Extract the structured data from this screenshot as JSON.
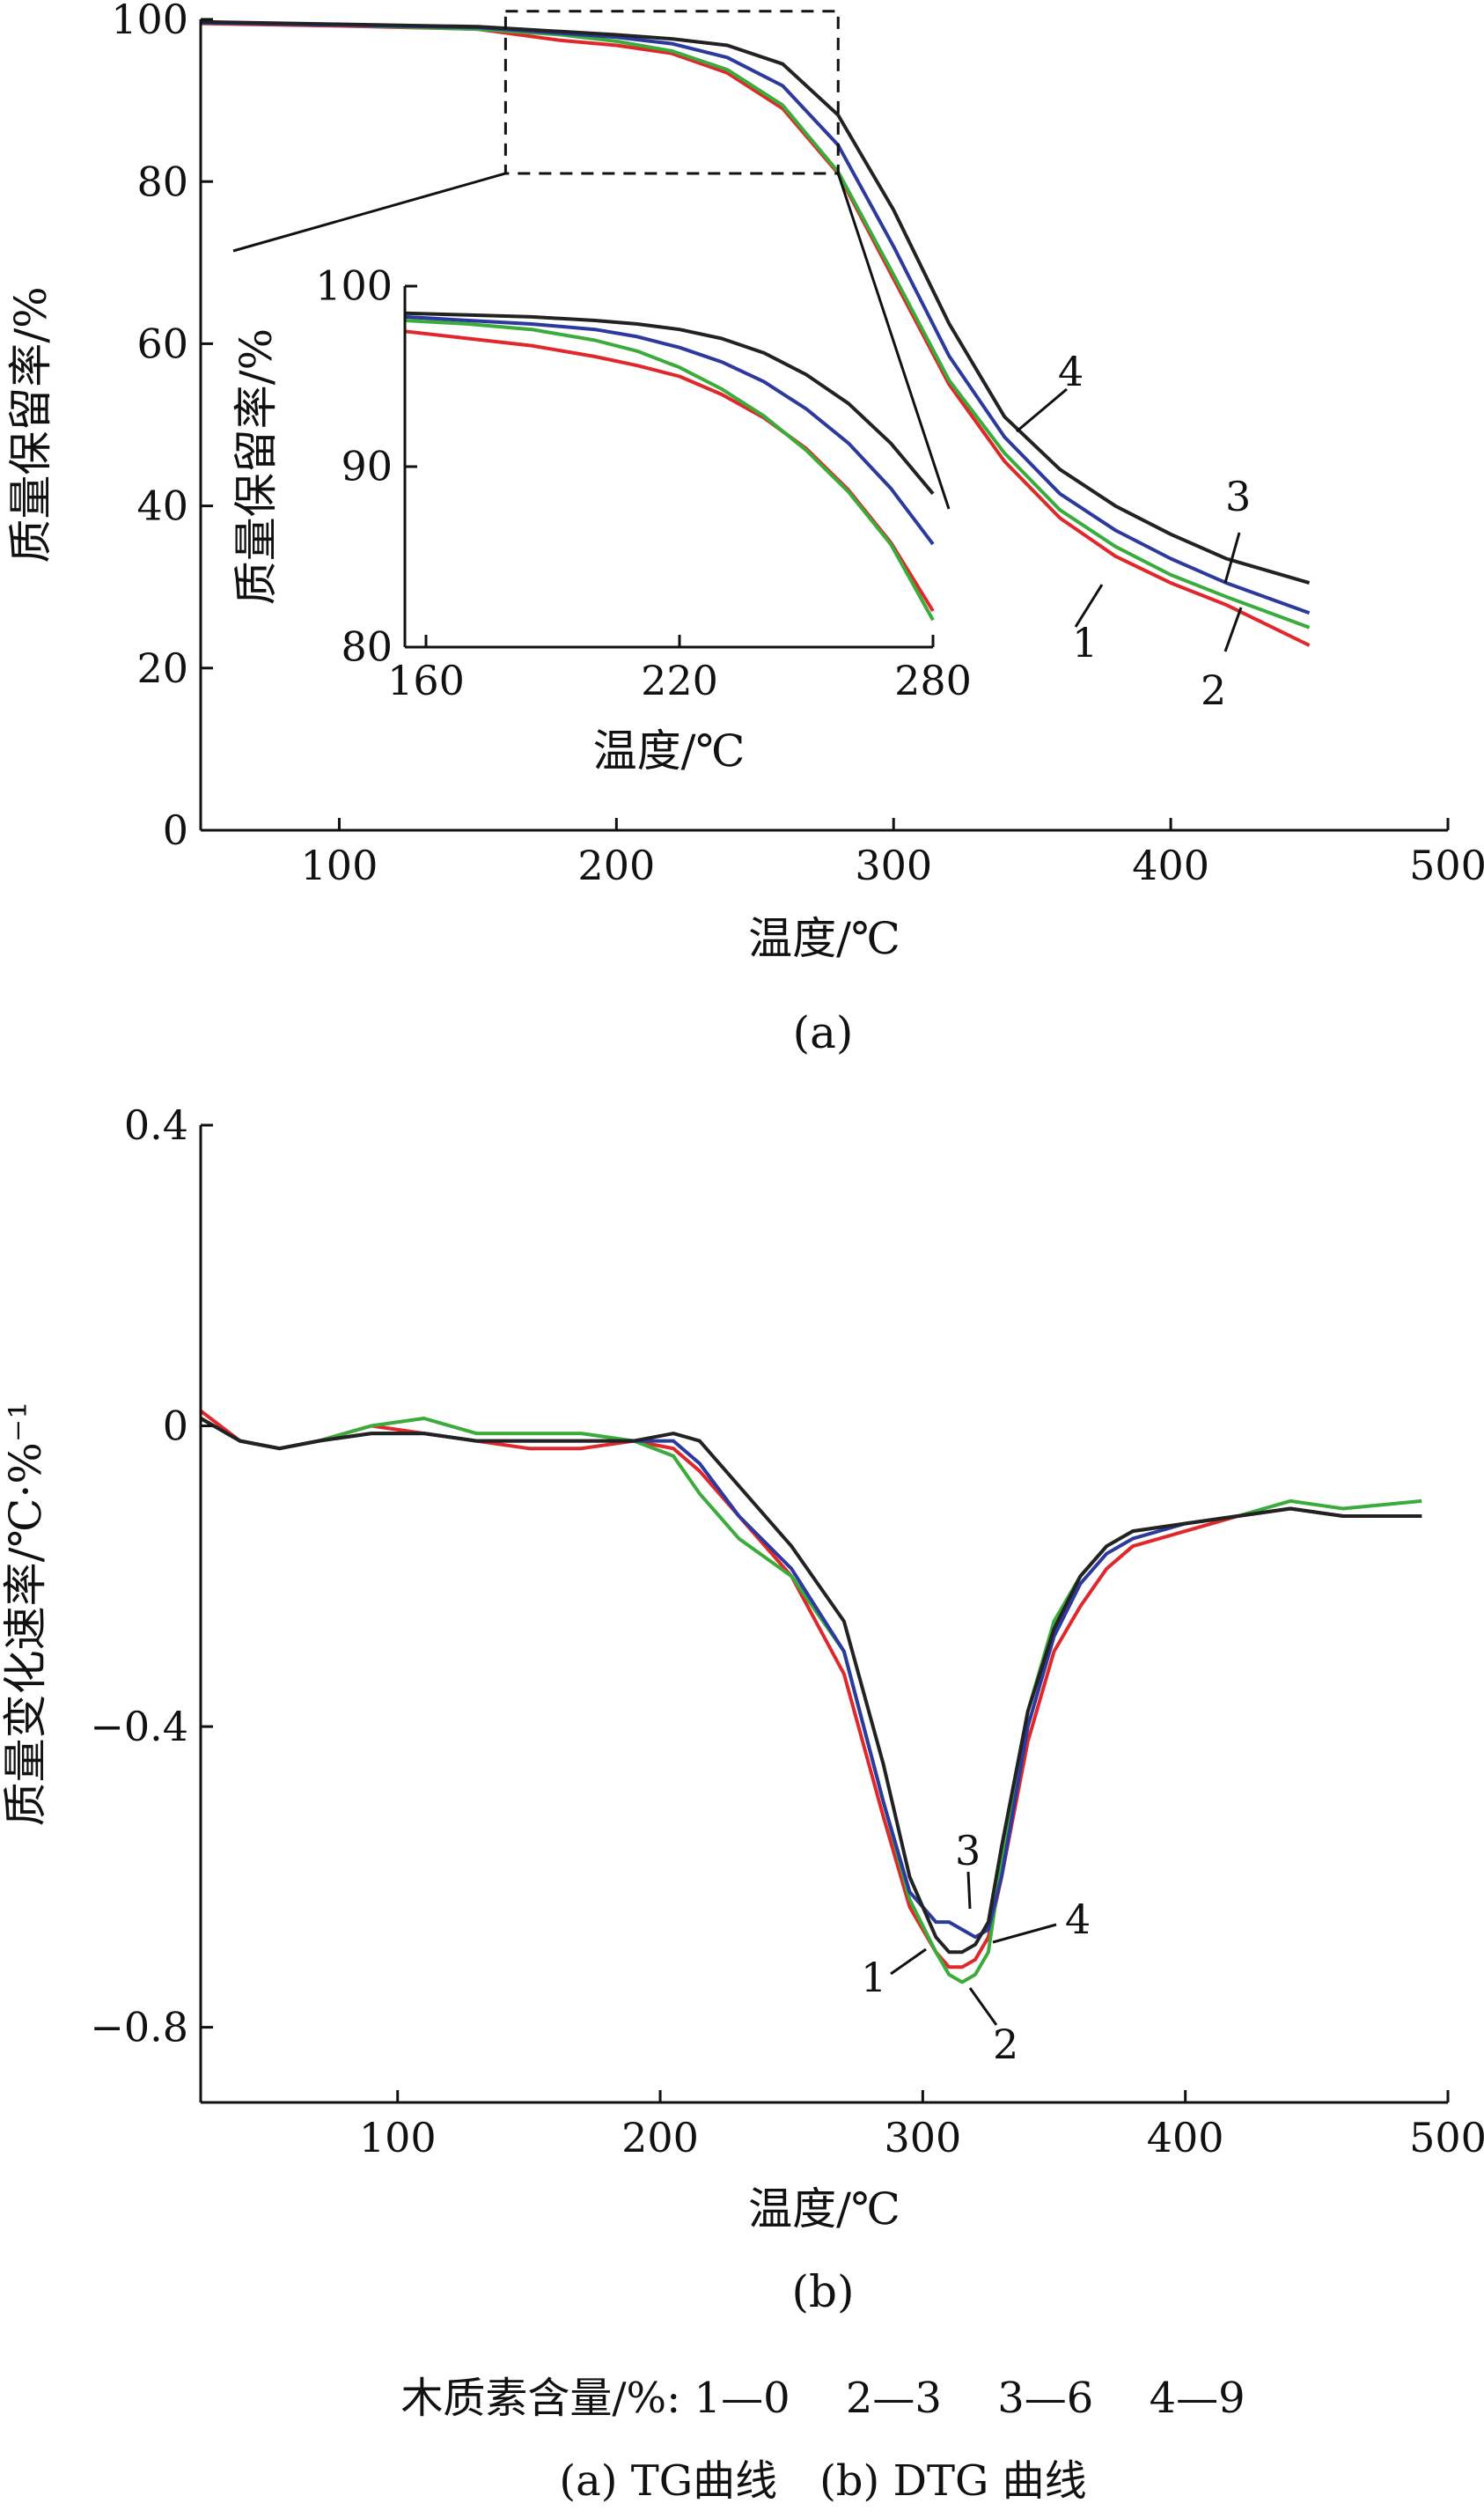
{
  "colors": {
    "s1": "#e0282c",
    "s2": "#3bab3c",
    "s3": "#2b3a9c",
    "s4": "#222222"
  },
  "chart_data": [
    {
      "id": "tg",
      "type": "line",
      "xlabel": "温度/℃",
      "ylabel": "质量保留率/%",
      "xlim": [
        50,
        500
      ],
      "ylim": [
        0,
        100
      ],
      "xticks": [
        100,
        200,
        300,
        400,
        500
      ],
      "yticks": [
        0,
        20,
        40,
        60,
        80,
        100
      ],
      "panel_label": "(a)",
      "series": [
        {
          "name": "1",
          "color": "s1",
          "x": [
            50,
            100,
            150,
            180,
            200,
            220,
            240,
            260,
            280,
            300,
            320,
            340,
            360,
            380,
            400,
            420,
            450
          ],
          "y": [
            99.5,
            99.2,
            98.8,
            97.4,
            96.8,
            95.8,
            93.4,
            89.0,
            81.0,
            68.0,
            55.0,
            45.5,
            38.5,
            33.8,
            30.5,
            27.8,
            22.8
          ]
        },
        {
          "name": "2",
          "color": "s2",
          "x": [
            50,
            100,
            150,
            180,
            200,
            220,
            240,
            260,
            280,
            300,
            320,
            340,
            360,
            380,
            400,
            420,
            450
          ],
          "y": [
            99.6,
            99.3,
            98.8,
            98.1,
            97.3,
            96.1,
            93.8,
            89.4,
            81.2,
            68.5,
            55.5,
            46.5,
            39.5,
            35.0,
            31.5,
            28.8,
            25.0
          ]
        },
        {
          "name": "3",
          "color": "s3",
          "x": [
            50,
            100,
            150,
            180,
            200,
            220,
            240,
            260,
            280,
            300,
            320,
            340,
            360,
            380,
            400,
            420,
            450
          ],
          "y": [
            99.6,
            99.3,
            99.0,
            98.3,
            97.8,
            97.0,
            95.3,
            91.8,
            84.5,
            72.0,
            58.5,
            48.5,
            41.5,
            37.0,
            33.5,
            30.5,
            26.8
          ]
        },
        {
          "name": "4",
          "color": "s4",
          "x": [
            50,
            100,
            150,
            180,
            200,
            220,
            240,
            260,
            280,
            300,
            320,
            340,
            360,
            380,
            400,
            420,
            450
          ],
          "y": [
            99.7,
            99.4,
            99.1,
            98.5,
            98.1,
            97.6,
            96.8,
            94.5,
            88.2,
            76.5,
            62.5,
            51.0,
            44.5,
            40.0,
            36.5,
            33.5,
            30.5
          ]
        }
      ],
      "inset": {
        "xlabel": "温度/℃",
        "ylabel": "质量保留率/%",
        "xlim": [
          155,
          280
        ],
        "ylim": [
          80,
          100
        ],
        "xticks": [
          160,
          220,
          280
        ],
        "yticks": [
          80,
          90,
          100
        ],
        "zoom_box": {
          "x": [
            160,
            280
          ],
          "y": [
            81,
            101
          ]
        },
        "series": [
          {
            "name": "1",
            "color": "s1",
            "x": [
              155,
              170,
              185,
              200,
              210,
              220,
              230,
              240,
              250,
              260,
              270,
              280
            ],
            "y": [
              97.5,
              97.1,
              96.7,
              96.1,
              95.6,
              95.0,
              94.0,
              92.7,
              91.0,
              88.7,
              85.8,
              82.0
            ]
          },
          {
            "name": "2",
            "color": "s2",
            "x": [
              155,
              170,
              185,
              200,
              210,
              220,
              230,
              240,
              250,
              260,
              270,
              280
            ],
            "y": [
              98.1,
              97.9,
              97.6,
              97.0,
              96.4,
              95.5,
              94.3,
              92.8,
              90.9,
              88.6,
              85.7,
              81.5
            ]
          },
          {
            "name": "3",
            "color": "s3",
            "x": [
              155,
              170,
              185,
              200,
              210,
              220,
              230,
              240,
              250,
              260,
              270,
              280
            ],
            "y": [
              98.3,
              98.1,
              97.9,
              97.6,
              97.2,
              96.6,
              95.8,
              94.7,
              93.2,
              91.3,
              88.8,
              85.7
            ]
          },
          {
            "name": "4",
            "color": "s4",
            "x": [
              155,
              170,
              185,
              200,
              210,
              220,
              230,
              240,
              250,
              260,
              270,
              280
            ],
            "y": [
              98.5,
              98.4,
              98.3,
              98.1,
              97.9,
              97.6,
              97.1,
              96.3,
              95.1,
              93.5,
              91.3,
              88.5
            ]
          }
        ]
      }
    },
    {
      "id": "dtg",
      "type": "line",
      "xlabel": "温度/℃",
      "ylabel": "质量变化速率/℃·%⁻¹",
      "xlim": [
        25,
        500
      ],
      "ylim": [
        -0.9,
        0.4
      ],
      "xticks": [
        100,
        200,
        300,
        400,
        500
      ],
      "yticks": [
        0.4,
        0,
        -0.4,
        -0.8
      ],
      "yticklabels": [
        "0.4",
        "0",
        "−0.4",
        "−0.8"
      ],
      "panel_label": "(b)",
      "series": [
        {
          "name": "1",
          "color": "s1",
          "x": [
            25,
            40,
            55,
            70,
            90,
            110,
            130,
            150,
            170,
            190,
            205,
            215,
            230,
            250,
            270,
            285,
            295,
            305,
            310,
            315,
            320,
            325,
            330,
            340,
            350,
            360,
            370,
            380,
            400,
            420,
            440,
            460,
            490
          ],
          "y": [
            0.02,
            -0.02,
            -0.03,
            -0.02,
            0.0,
            -0.01,
            -0.02,
            -0.03,
            -0.03,
            -0.02,
            -0.03,
            -0.06,
            -0.12,
            -0.2,
            -0.33,
            -0.52,
            -0.64,
            -0.7,
            -0.72,
            -0.72,
            -0.71,
            -0.68,
            -0.6,
            -0.42,
            -0.3,
            -0.24,
            -0.19,
            -0.16,
            -0.14,
            -0.12,
            -0.11,
            -0.12,
            -0.12
          ]
        },
        {
          "name": "2",
          "color": "s2",
          "x": [
            25,
            40,
            55,
            70,
            90,
            110,
            130,
            150,
            170,
            190,
            205,
            215,
            230,
            250,
            270,
            285,
            295,
            305,
            310,
            315,
            320,
            325,
            330,
            340,
            350,
            360,
            370,
            380,
            400,
            420,
            440,
            460,
            490
          ],
          "y": [
            0.01,
            -0.02,
            -0.03,
            -0.02,
            0.0,
            0.01,
            -0.01,
            -0.01,
            -0.01,
            -0.02,
            -0.04,
            -0.09,
            -0.15,
            -0.2,
            -0.3,
            -0.5,
            -0.63,
            -0.7,
            -0.73,
            -0.74,
            -0.73,
            -0.7,
            -0.58,
            -0.38,
            -0.26,
            -0.2,
            -0.16,
            -0.14,
            -0.13,
            -0.12,
            -0.1,
            -0.11,
            -0.1
          ]
        },
        {
          "name": "3",
          "color": "s3",
          "x": [
            25,
            40,
            55,
            70,
            90,
            110,
            130,
            150,
            170,
            190,
            205,
            215,
            230,
            250,
            270,
            285,
            295,
            305,
            310,
            315,
            320,
            325,
            330,
            340,
            350,
            360,
            370,
            380,
            400,
            420,
            440,
            460,
            490
          ],
          "y": [
            0.01,
            -0.02,
            -0.03,
            -0.02,
            -0.01,
            -0.01,
            -0.02,
            -0.02,
            -0.02,
            -0.02,
            -0.02,
            -0.05,
            -0.12,
            -0.19,
            -0.3,
            -0.5,
            -0.62,
            -0.66,
            -0.66,
            -0.67,
            -0.68,
            -0.67,
            -0.6,
            -0.4,
            -0.28,
            -0.21,
            -0.17,
            -0.15,
            -0.13,
            -0.12,
            -0.11,
            -0.12,
            -0.12
          ]
        },
        {
          "name": "4",
          "color": "s4",
          "x": [
            25,
            40,
            55,
            70,
            90,
            110,
            130,
            150,
            170,
            190,
            205,
            215,
            230,
            250,
            270,
            285,
            295,
            305,
            310,
            315,
            320,
            325,
            330,
            340,
            350,
            360,
            370,
            380,
            400,
            420,
            440,
            460,
            490
          ],
          "y": [
            0.01,
            -0.02,
            -0.03,
            -0.02,
            -0.01,
            -0.01,
            -0.02,
            -0.02,
            -0.02,
            -0.02,
            -0.01,
            -0.02,
            -0.08,
            -0.16,
            -0.26,
            -0.45,
            -0.6,
            -0.68,
            -0.7,
            -0.7,
            -0.69,
            -0.66,
            -0.56,
            -0.38,
            -0.27,
            -0.2,
            -0.16,
            -0.14,
            -0.13,
            -0.12,
            -0.11,
            -0.12,
            -0.12
          ]
        }
      ]
    }
  ],
  "labels": {
    "tg": [
      "1",
      "2",
      "3",
      "4"
    ],
    "dtg": [
      "1",
      "2",
      "3",
      "4"
    ]
  },
  "legend_text": "木质素含量/%: 1—0　 2—3　 3—6　 4—9",
  "caption_text": "(a) TG曲线　(b) DTG 曲线"
}
